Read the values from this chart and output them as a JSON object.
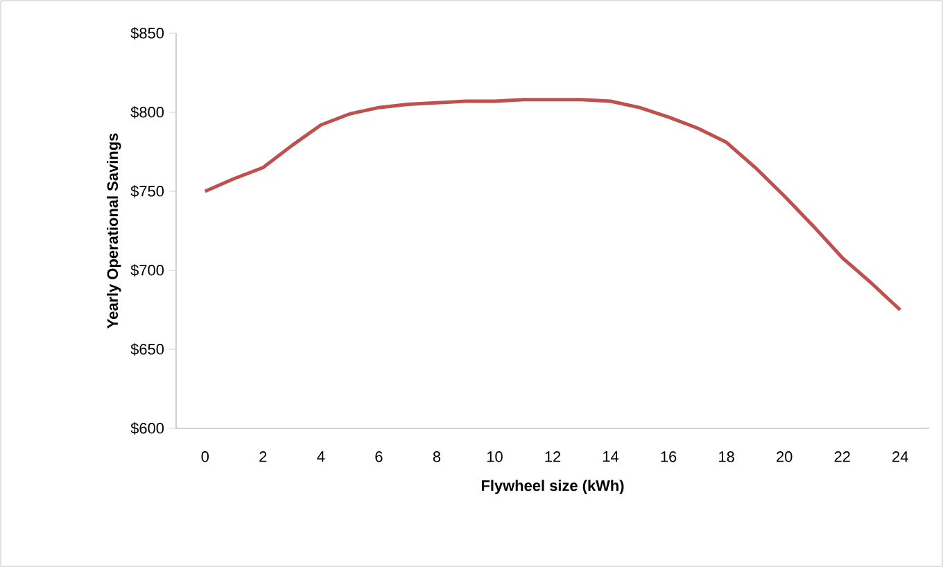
{
  "chart_data": {
    "type": "line",
    "xlabel": "Flywheel size (kWh)",
    "ylabel": "Yearly Operational Savings",
    "x": [
      0,
      1,
      2,
      3,
      4,
      5,
      6,
      7,
      8,
      9,
      10,
      11,
      12,
      13,
      14,
      15,
      16,
      17,
      18,
      19,
      20,
      21,
      22,
      23,
      24
    ],
    "series": [
      {
        "color": "#c0504d",
        "values": [
          750,
          758,
          765,
          779,
          792,
          799,
          803,
          805,
          806,
          807,
          807,
          808,
          808,
          808,
          807,
          803,
          797,
          790,
          781,
          765,
          747,
          728,
          708,
          692,
          675
        ]
      }
    ],
    "xlim": [
      -1,
      25
    ],
    "xticks": [
      0,
      2,
      4,
      6,
      8,
      10,
      12,
      14,
      16,
      18,
      20,
      22,
      24
    ],
    "ylim": [
      600,
      850
    ],
    "yticks": [
      {
        "value": 600,
        "label": "$600"
      },
      {
        "value": 650,
        "label": "$650"
      },
      {
        "value": 700,
        "label": "$700"
      },
      {
        "value": 750,
        "label": "$750"
      },
      {
        "value": 800,
        "label": "$800"
      },
      {
        "value": 850,
        "label": "$850"
      }
    ],
    "grid": false,
    "marker": "none",
    "line_style": "solid"
  }
}
